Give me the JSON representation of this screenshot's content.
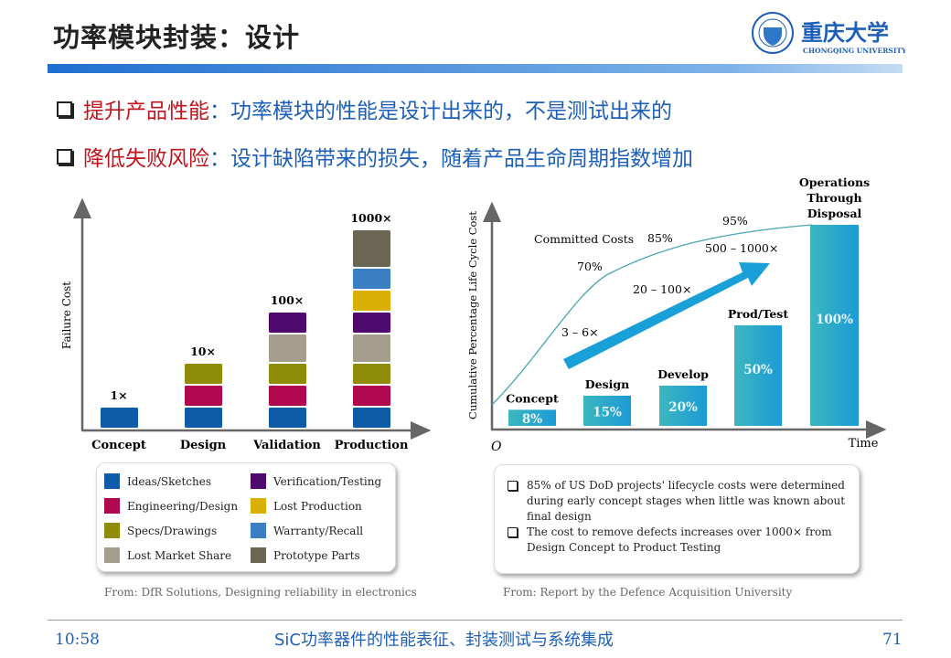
{
  "slide": {
    "title": "功率模块封装：设计",
    "logo": {
      "name": "重庆大学",
      "english": "CHONGQING UNIVERSITY"
    },
    "bullets": [
      {
        "keyword": "提升产品性能",
        "sep": "：",
        "text": "功率模块的性能是设计出来的，不是测试出来的"
      },
      {
        "keyword": "降低失败风险",
        "sep": "：",
        "text": "设计缺陷带来的损失，随着产品生命周期指数增加"
      }
    ],
    "footer": {
      "time": "10:58",
      "title": "SiC功率器件的性能表征、封装测试与系统集成",
      "page": "71"
    },
    "colors": {
      "accent_red": "#c0141c",
      "accent_blue": "#1d5fb8"
    }
  },
  "chart_data": [
    {
      "type": "bar",
      "stacked": true,
      "ylabel": "Failure Cost",
      "categories": [
        "Concept",
        "Design",
        "Validation",
        "Production"
      ],
      "bar_labels": [
        "1×",
        "10×",
        "100×",
        "1000×"
      ],
      "legend_entries": [
        {
          "name": "Ideas/Sketches",
          "color": "#0e5ca8"
        },
        {
          "name": "Engineering/Design",
          "color": "#b0084f"
        },
        {
          "name": "Specs/Drawings",
          "color": "#8f8c0a"
        },
        {
          "name": "Lost Market Share",
          "color": "#a59d8e"
        },
        {
          "name": "Verification/Testing",
          "color": "#4e0a6e"
        },
        {
          "name": "Lost Production",
          "color": "#d9b106"
        },
        {
          "name": "Warranty/Recall",
          "color": "#3a7fc2"
        },
        {
          "name": "Prototype Parts",
          "color": "#6b6553"
        }
      ],
      "stacks": [
        [
          "Ideas/Sketches"
        ],
        [
          "Ideas/Sketches",
          "Engineering/Design",
          "Specs/Drawings"
        ],
        [
          "Ideas/Sketches",
          "Engineering/Design",
          "Specs/Drawings",
          "Lost Market Share",
          "Verification/Testing"
        ],
        [
          "Ideas/Sketches",
          "Engineering/Design",
          "Specs/Drawings",
          "Lost Market Share",
          "Verification/Testing",
          "Lost Production",
          "Warranty/Recall",
          "Prototype Parts"
        ]
      ],
      "source": "From: DfR Solutions, Designing reliability in electronics"
    },
    {
      "type": "bar",
      "ylabel": "Cumulative Percentage Life Cycle Cost",
      "xlabel": "Time",
      "origin_label": "O",
      "categories": [
        "Concept",
        "Design",
        "Develop",
        "Prod/Test",
        "Operations Through Disposal"
      ],
      "values": [
        8,
        15,
        20,
        50,
        100
      ],
      "value_labels": [
        "8%",
        "15%",
        "20%",
        "50%",
        "100%"
      ],
      "line": {
        "name": "Committed Costs",
        "points": [
          {
            "label": "70%",
            "value": 70
          },
          {
            "label": "85%",
            "value": 85
          },
          {
            "label": "95%",
            "value": 95
          }
        ]
      },
      "arrow_labels": [
        "3 – 6×",
        "20 – 100×",
        "500 – 1000×"
      ],
      "notes": [
        "85% of US DoD projects' lifecycle costs were determined during early concept stages when little was known about final design",
        "The cost to remove defects increases over 1000× from Design Concept to Product Testing"
      ],
      "source": "From: Report by the Defence Acquisition University"
    }
  ]
}
